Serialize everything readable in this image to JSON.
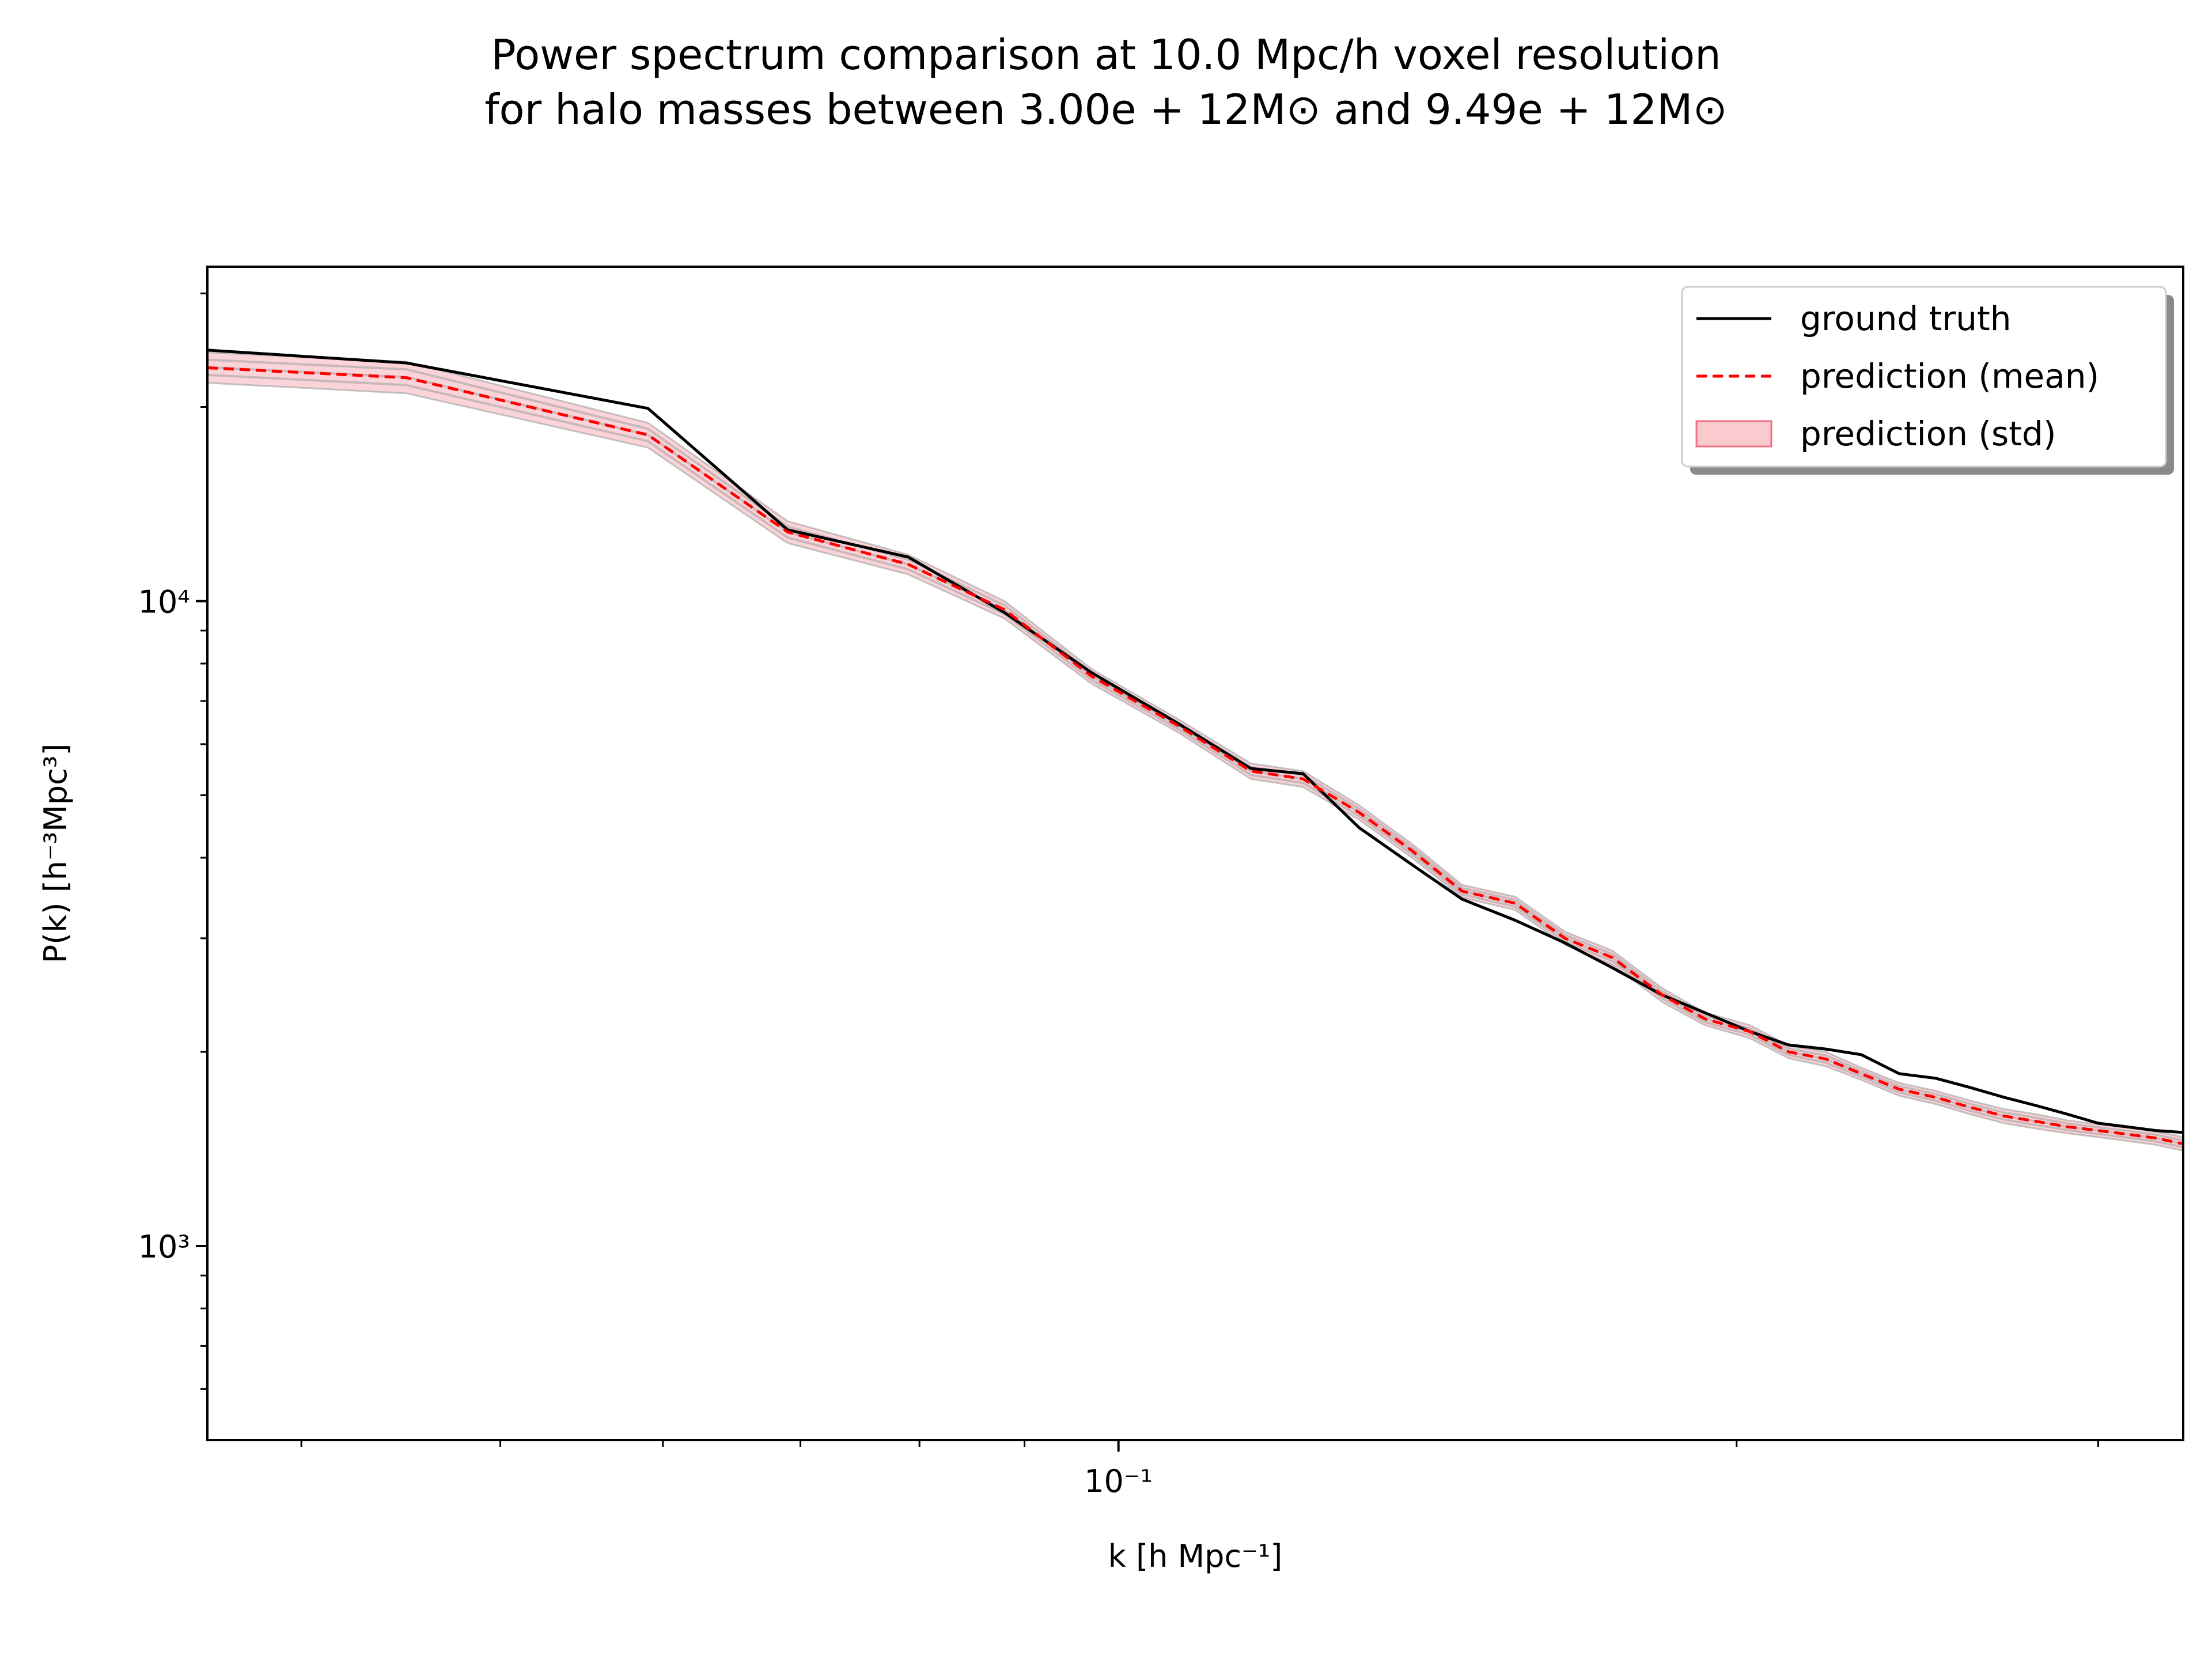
{
  "title": {
    "line1": "Power spectrum comparison at 10.0 Mpc/h voxel resolution",
    "line2": "for halo masses between 3.00e + 12M⊙ and 9.49e + 12M⊙"
  },
  "chart_data": {
    "type": "line",
    "xscale": "log",
    "yscale": "log",
    "xlim": [
      0.036,
      0.33
    ],
    "ylim": [
      500,
      33000
    ],
    "xlabel": "k [h Mpc⁻¹]",
    "ylabel": "P(k) [h⁻³Mpc³]",
    "x_tick_labels": [
      "10⁻¹"
    ],
    "y_tick_labels": [
      "10⁴",
      "10³"
    ],
    "legend": {
      "position": "top-right",
      "entries": [
        "ground truth",
        "prediction (mean)",
        "prediction (std)"
      ]
    },
    "x": [
      0.036,
      0.045,
      0.059,
      0.069,
      0.079,
      0.088,
      0.097,
      0.107,
      0.116,
      0.123,
      0.131,
      0.139,
      0.147,
      0.156,
      0.165,
      0.174,
      0.184,
      0.193,
      0.203,
      0.212,
      0.221,
      0.23,
      0.24,
      0.25,
      0.26,
      0.27,
      0.28,
      0.29,
      0.3,
      0.31,
      0.32,
      0.33
    ],
    "series": [
      {
        "name": "ground truth",
        "color": "#000000",
        "style": "solid",
        "values": [
          24500,
          23400,
          19900,
          12900,
          11700,
          9600,
          7750,
          6450,
          5500,
          5400,
          4450,
          3900,
          3450,
          3200,
          2950,
          2700,
          2450,
          2300,
          2150,
          2050,
          2020,
          1980,
          1850,
          1820,
          1760,
          1700,
          1650,
          1600,
          1550,
          1530,
          1510,
          1500
        ]
      },
      {
        "name": "prediction (mean)",
        "color": "#ff0000",
        "style": "dashed",
        "values": [
          23000,
          22200,
          18100,
          12800,
          11400,
          9700,
          7650,
          6400,
          5450,
          5300,
          4700,
          4100,
          3550,
          3400,
          3000,
          2800,
          2450,
          2250,
          2150,
          2000,
          1950,
          1850,
          1750,
          1700,
          1640,
          1590,
          1560,
          1530,
          1510,
          1490,
          1470,
          1440
        ]
      }
    ],
    "std_band": {
      "name": "prediction (std)",
      "color": "#f4a0a8",
      "lower": [
        21800,
        21000,
        17300,
        12300,
        11000,
        9400,
        7450,
        6250,
        5300,
        5150,
        4580,
        4000,
        3470,
        3320,
        2930,
        2730,
        2390,
        2200,
        2100,
        1955,
        1900,
        1810,
        1710,
        1660,
        1600,
        1550,
        1520,
        1495,
        1475,
        1455,
        1435,
        1405
      ],
      "upper": [
        24300,
        23500,
        18900,
        13300,
        11800,
        10000,
        7850,
        6550,
        5600,
        5450,
        4820,
        4200,
        3630,
        3480,
        3070,
        2870,
        2510,
        2300,
        2200,
        2045,
        2000,
        1890,
        1790,
        1740,
        1680,
        1630,
        1600,
        1565,
        1545,
        1525,
        1505,
        1475
      ]
    }
  }
}
